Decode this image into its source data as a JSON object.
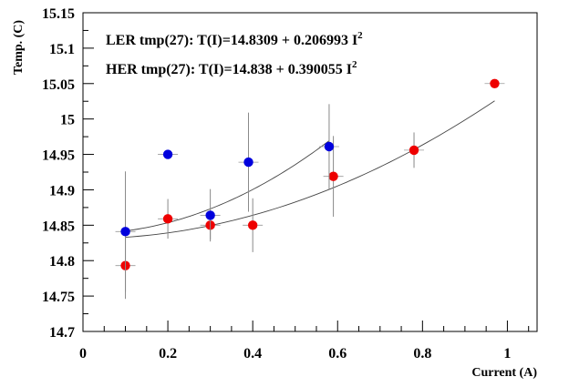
{
  "chart_data": {
    "type": "scatter",
    "title": "",
    "xlabel": "Current (A)",
    "ylabel": "Temp. (C)",
    "xlim": [
      0,
      1.07
    ],
    "ylim": [
      14.7,
      15.15
    ],
    "x_ticks": [
      0,
      0.2,
      0.4,
      0.6,
      0.8,
      1
    ],
    "x_tick_labels": [
      "0",
      "0.2",
      "0.4",
      "0.6",
      "0.8",
      "1"
    ],
    "y_ticks": [
      14.7,
      14.75,
      14.8,
      14.85,
      14.9,
      14.95,
      15,
      15.05,
      15.1,
      15.15
    ],
    "y_tick_labels": [
      "14.7",
      "14.75",
      "14.8",
      "14.85",
      "14.9",
      "14.95",
      "15",
      "15.05",
      "15.1",
      "15.15"
    ],
    "grid": false,
    "series": [
      {
        "name": "LER",
        "color": "#ee0000",
        "fit_text": "LER tmp(27): T(I)=14.8309 + 0.206993 I",
        "fit_sup": "2",
        "fit": {
          "a": 14.8309,
          "b": 0.206993,
          "x_range": [
            0.1,
            0.97
          ]
        },
        "points": [
          {
            "x": 0.1,
            "y": 14.793,
            "err": 0.047
          },
          {
            "x": 0.2,
            "y": 14.859,
            "err": 0.028
          },
          {
            "x": 0.3,
            "y": 14.85,
            "err": 0.02
          },
          {
            "x": 0.4,
            "y": 14.85,
            "err": 0.038
          },
          {
            "x": 0.59,
            "y": 14.919,
            "err": 0.057
          },
          {
            "x": 0.78,
            "y": 14.956,
            "err": 0.025
          },
          {
            "x": 0.97,
            "y": 15.05,
            "err": 0.005
          }
        ]
      },
      {
        "name": "HER",
        "color": "#0000dd",
        "fit_text": "HER tmp(27): T(I)=14.838 + 0.390055 I",
        "fit_sup": "2",
        "fit": {
          "a": 14.838,
          "b": 0.390055,
          "x_range": [
            0.1,
            0.58
          ]
        },
        "points": [
          {
            "x": 0.1,
            "y": 14.841,
            "err": 0.085
          },
          {
            "x": 0.2,
            "y": 14.95,
            "err": 0.0
          },
          {
            "x": 0.3,
            "y": 14.864,
            "err": 0.037
          },
          {
            "x": 0.39,
            "y": 14.939,
            "err": 0.07
          },
          {
            "x": 0.58,
            "y": 14.961,
            "err": 0.06
          }
        ]
      }
    ]
  }
}
